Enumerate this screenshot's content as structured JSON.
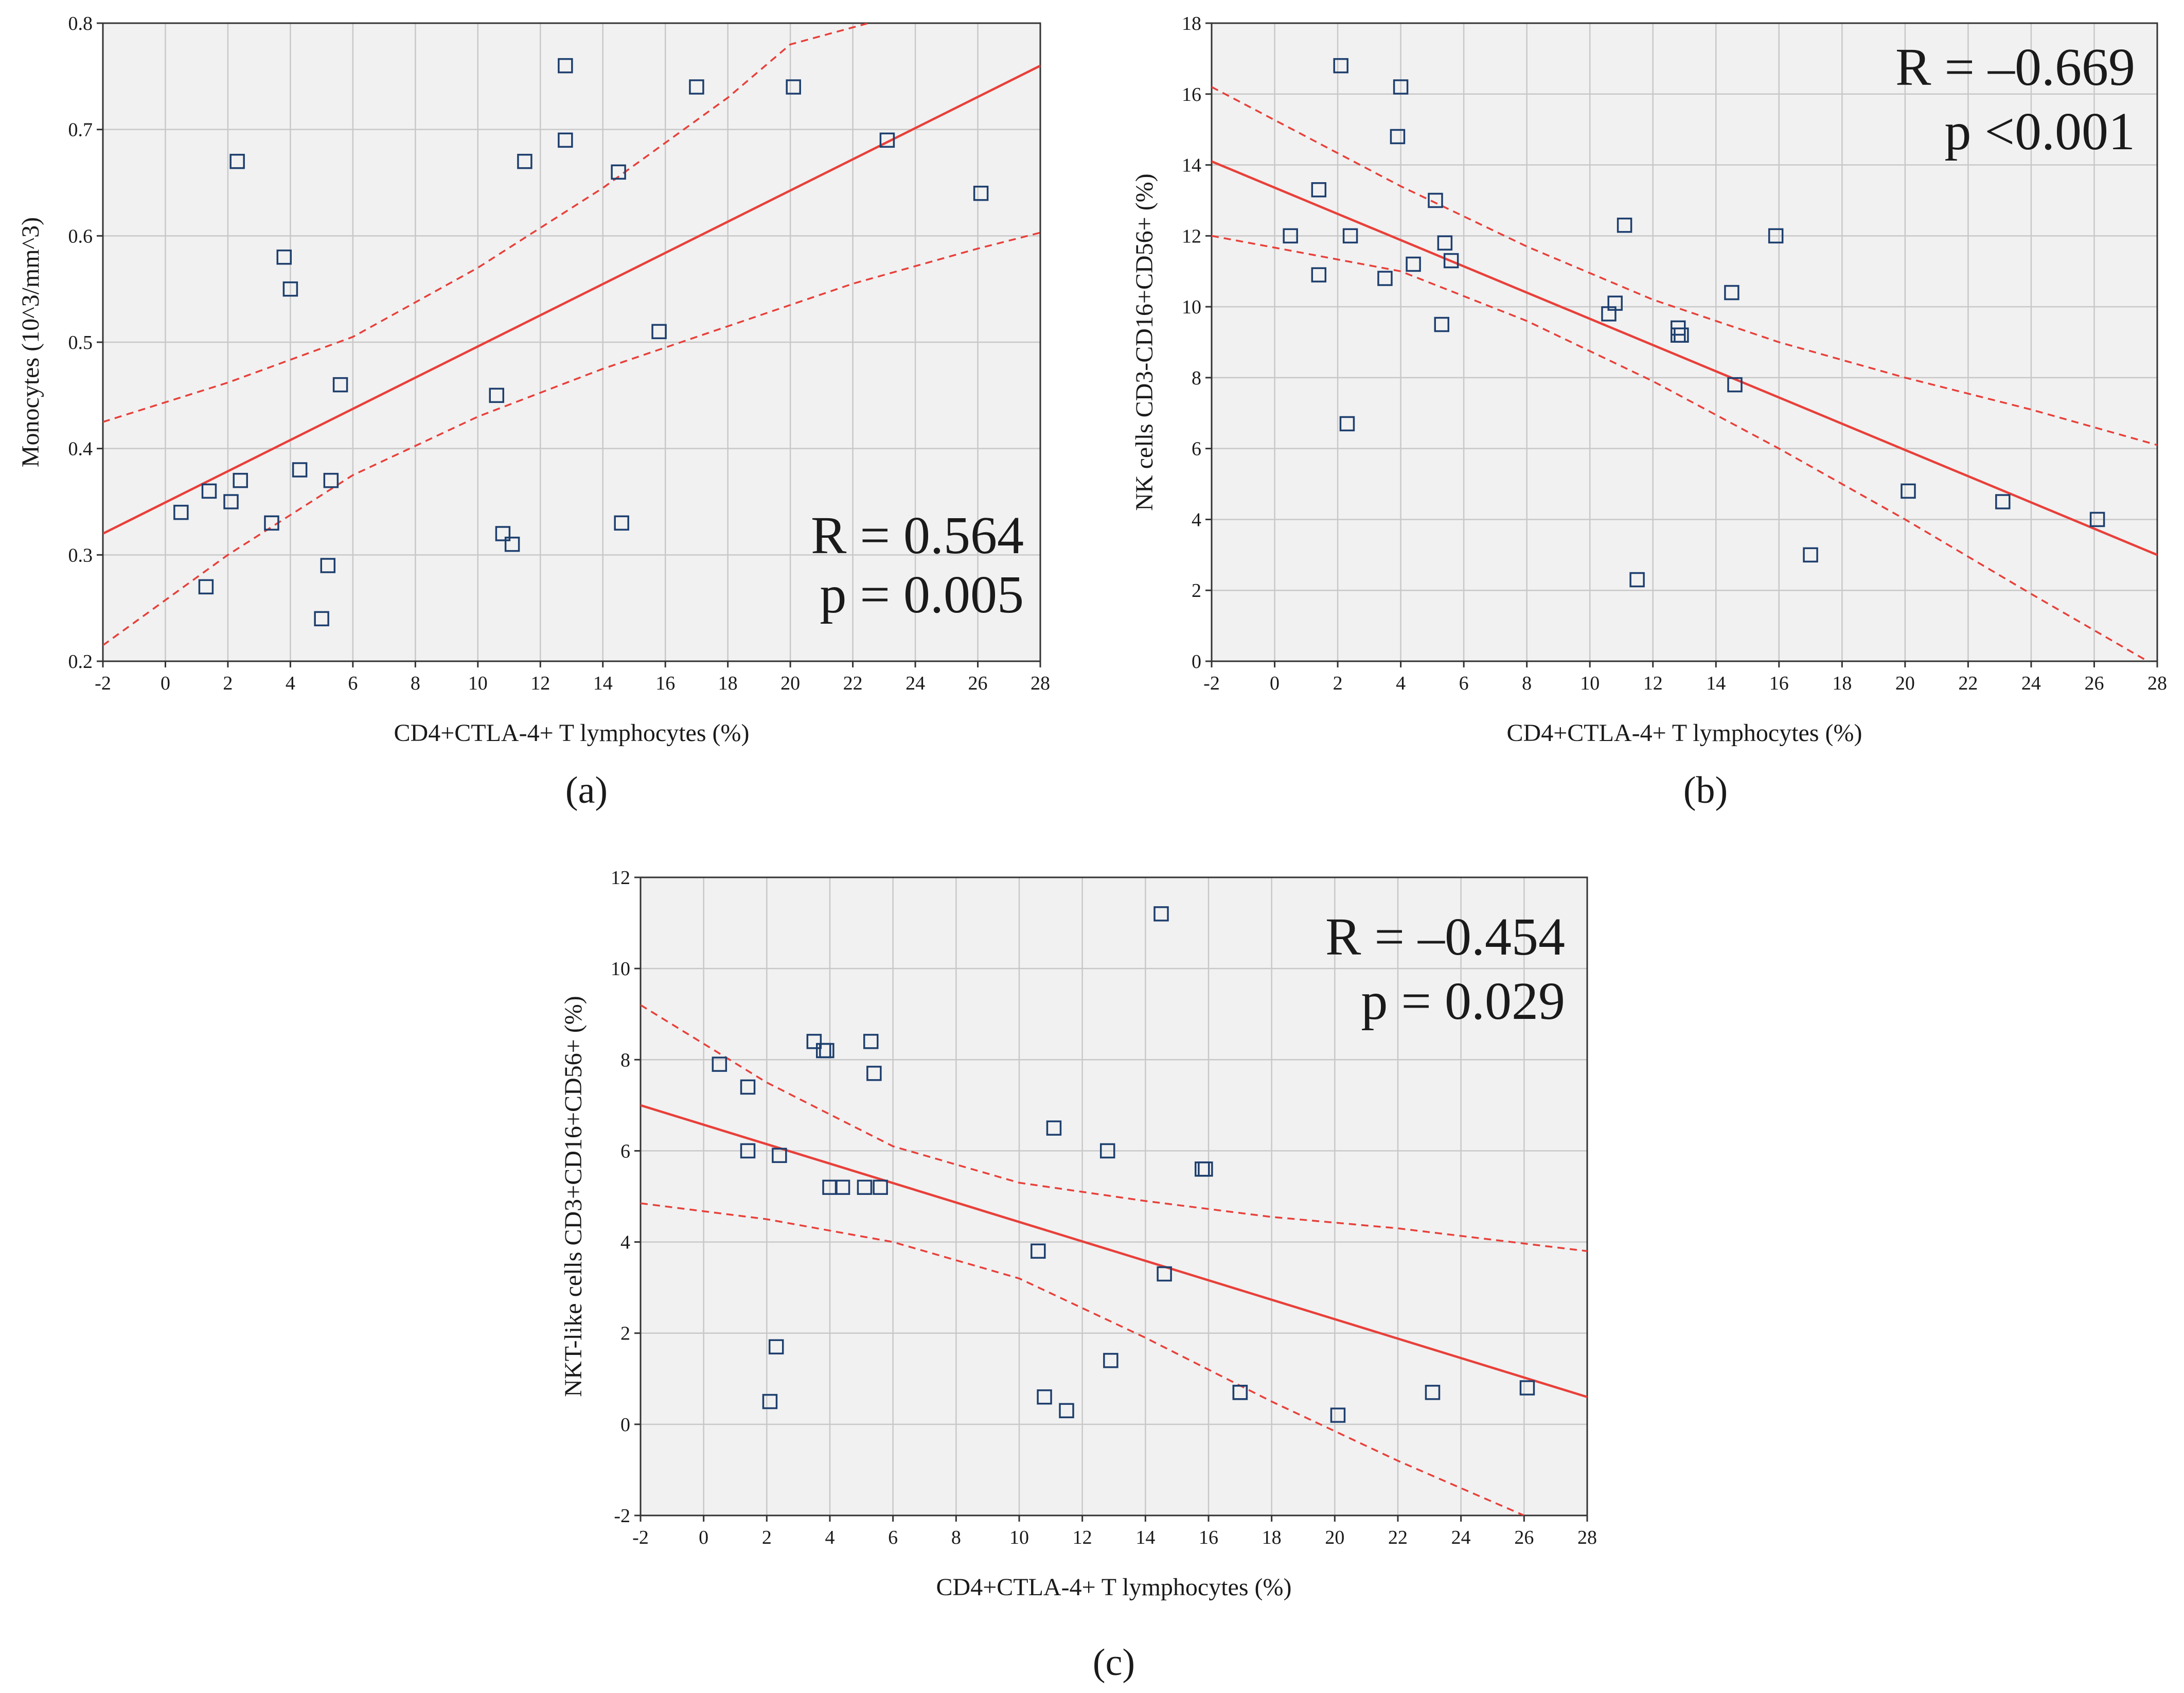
{
  "figure_captions": [
    "(a)",
    "(b)",
    "(c)"
  ],
  "chart_data": [
    {
      "type": "scatter",
      "caption": "(a)",
      "xlabel": "CD4+CTLA-4+ T lymphocytes (%)",
      "ylabel": "Monocytes (10^3/mm^3)",
      "xlim": [
        -2,
        28
      ],
      "ylim": [
        0.2,
        0.8
      ],
      "xticks": [
        -2,
        0,
        2,
        4,
        6,
        8,
        10,
        12,
        14,
        16,
        18,
        20,
        22,
        24,
        26,
        28
      ],
      "yticks": [
        0.2,
        0.3,
        0.4,
        0.5,
        0.6,
        0.7,
        0.8
      ],
      "grid": true,
      "stat_r": "R = 0.564",
      "stat_p": "p = 0.005",
      "points": {
        "x": [
          0.5,
          1.3,
          1.4,
          2.1,
          2.3,
          2.4,
          3.4,
          3.8,
          4.0,
          4.3,
          5.0,
          5.2,
          5.3,
          5.6,
          10.6,
          10.8,
          11.1,
          11.5,
          12.8,
          12.8,
          14.5,
          14.6,
          15.8,
          17.0,
          20.1,
          23.1,
          26.1
        ],
        "y": [
          0.34,
          0.27,
          0.36,
          0.35,
          0.67,
          0.37,
          0.33,
          0.58,
          0.55,
          0.38,
          0.24,
          0.29,
          0.37,
          0.46,
          0.45,
          0.32,
          0.31,
          0.67,
          0.76,
          0.69,
          0.66,
          0.33,
          0.51,
          0.74,
          0.74,
          0.69,
          0.64
        ]
      },
      "fit_line": {
        "x": [
          -2,
          28
        ],
        "y": [
          0.32,
          0.76
        ]
      },
      "ci_upper": {
        "x": [
          -2,
          2,
          6,
          10,
          14,
          18,
          20,
          22.5
        ],
        "y": [
          0.425,
          0.462,
          0.505,
          0.57,
          0.645,
          0.73,
          0.78,
          0.8
        ]
      },
      "ci_lower": {
        "x": [
          -2,
          2,
          6,
          10,
          14,
          18,
          22,
          26,
          28
        ],
        "y": [
          0.215,
          0.3,
          0.375,
          0.43,
          0.475,
          0.515,
          0.555,
          0.588,
          0.603
        ]
      }
    },
    {
      "type": "scatter",
      "caption": "(b)",
      "xlabel": "CD4+CTLA-4+ T lymphocytes (%)",
      "ylabel": "NK cells CD3-CD16+CD56+ (%)",
      "xlim": [
        -2,
        28
      ],
      "ylim": [
        0,
        18
      ],
      "xticks": [
        -2,
        0,
        2,
        4,
        6,
        8,
        10,
        12,
        14,
        16,
        18,
        20,
        22,
        24,
        26,
        28
      ],
      "yticks": [
        0,
        2,
        4,
        6,
        8,
        10,
        12,
        14,
        16,
        18
      ],
      "grid": true,
      "stat_r": "R = –0.669",
      "stat_p": "p <0.001",
      "points": {
        "x": [
          0.5,
          1.4,
          1.4,
          2.1,
          2.3,
          2.4,
          3.5,
          3.9,
          4.0,
          4.4,
          5.1,
          5.3,
          5.4,
          5.6,
          10.6,
          10.8,
          11.1,
          11.5,
          12.8,
          12.8,
          12.9,
          14.5,
          14.6,
          15.9,
          17.0,
          20.1,
          23.1,
          26.1
        ],
        "y": [
          12.0,
          13.3,
          10.9,
          16.8,
          6.7,
          12.0,
          10.8,
          14.8,
          16.2,
          11.2,
          13.0,
          9.5,
          11.8,
          11.3,
          9.8,
          10.1,
          12.3,
          2.3,
          9.4,
          9.2,
          9.2,
          10.4,
          7.8,
          12.0,
          3.0,
          4.8,
          4.5,
          4.0
        ]
      },
      "fit_line": {
        "x": [
          -2,
          28
        ],
        "y": [
          14.1,
          3.0
        ]
      },
      "ci_upper": {
        "x": [
          -2,
          4,
          8,
          12,
          16,
          20,
          24,
          28
        ],
        "y": [
          16.2,
          13.4,
          11.7,
          10.2,
          9.0,
          8.0,
          7.1,
          6.1
        ]
      },
      "ci_lower": {
        "x": [
          -2,
          4,
          8,
          12,
          16,
          20,
          24,
          27.7
        ],
        "y": [
          12.0,
          11.0,
          9.6,
          7.9,
          6.0,
          4.0,
          1.9,
          0.0
        ]
      }
    },
    {
      "type": "scatter",
      "caption": "(c)",
      "xlabel": "CD4+CTLA-4+ T lymphocytes (%)",
      "ylabel": "NKT-like cells CD3+CD16+CD56+ (%)",
      "xlim": [
        -2,
        28
      ],
      "ylim": [
        -2,
        12
      ],
      "xticks": [
        -2,
        0,
        2,
        4,
        6,
        8,
        10,
        12,
        14,
        16,
        18,
        20,
        22,
        24,
        26,
        28
      ],
      "yticks": [
        -2,
        0,
        2,
        4,
        6,
        8,
        10,
        12
      ],
      "grid": true,
      "stat_r": "R = –0.454",
      "stat_p": "p = 0.029",
      "points": {
        "x": [
          0.5,
          1.4,
          1.4,
          2.1,
          2.3,
          2.4,
          3.5,
          3.8,
          3.9,
          4.0,
          4.4,
          5.1,
          5.3,
          5.4,
          5.6,
          10.6,
          10.8,
          11.1,
          11.5,
          12.8,
          12.9,
          14.5,
          14.6,
          15.8,
          15.9,
          17.0,
          17.0,
          20.1,
          23.1,
          26.1
        ],
        "y": [
          7.9,
          7.4,
          6.0,
          0.5,
          1.7,
          5.9,
          8.4,
          8.2,
          8.2,
          5.2,
          5.2,
          5.2,
          8.4,
          7.7,
          5.2,
          3.8,
          0.6,
          6.5,
          0.3,
          6.0,
          1.4,
          11.2,
          3.3,
          5.6,
          5.6,
          0.7,
          0.7,
          0.2,
          0.7,
          0.8
        ]
      },
      "fit_line": {
        "x": [
          -2,
          28
        ],
        "y": [
          7.0,
          0.6
        ]
      },
      "ci_upper": {
        "x": [
          -2,
          2,
          6,
          10,
          14,
          18,
          22,
          28
        ],
        "y": [
          9.2,
          7.5,
          6.1,
          5.3,
          4.9,
          4.55,
          4.3,
          3.8
        ]
      },
      "ci_lower": {
        "x": [
          -2,
          2,
          6,
          10,
          14,
          18,
          22,
          26
        ],
        "y": [
          4.85,
          4.5,
          4.0,
          3.2,
          1.9,
          0.5,
          -0.8,
          -2.0
        ]
      }
    }
  ]
}
